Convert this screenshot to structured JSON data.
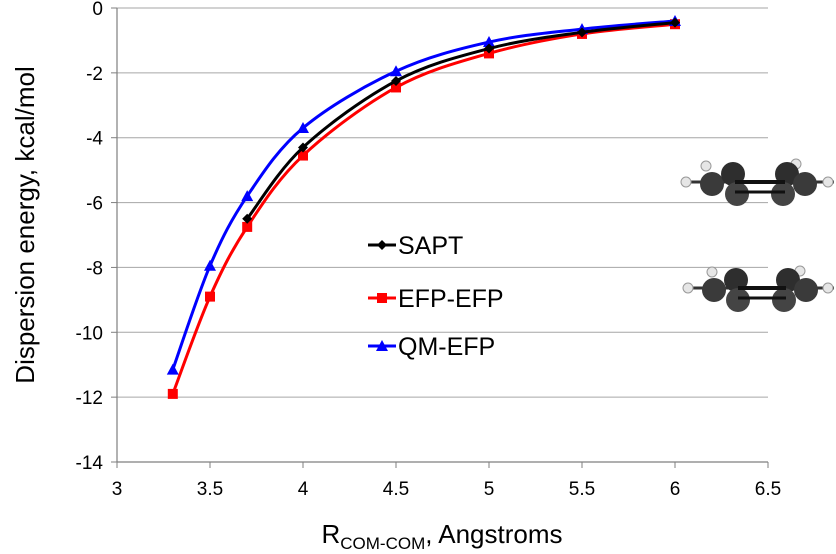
{
  "chart_data": {
    "type": "line",
    "title": "",
    "xlabel": {
      "main": "R",
      "subscript": "COM-COM",
      "suffix": ", Angstroms"
    },
    "ylabel": "Dispersion energy, kcal/mol",
    "xlim": [
      3,
      6.5
    ],
    "ylim": [
      -14,
      0
    ],
    "xticks": [
      "3",
      "3.5",
      "4",
      "4.5",
      "5",
      "5.5",
      "6",
      "6.5"
    ],
    "yticks": [
      "0",
      "-2",
      "-4",
      "-6",
      "-8",
      "-10",
      "-12",
      "-14"
    ],
    "grid": "horizontal",
    "legend_position": "center",
    "series": [
      {
        "name": "SAPT",
        "color": "#000000",
        "marker": "diamond",
        "x": [
          3.7,
          4.0,
          4.5,
          5.0,
          5.5,
          6.0
        ],
        "y": [
          -6.5,
          -4.3,
          -2.25,
          -1.25,
          -0.75,
          -0.45
        ]
      },
      {
        "name": "EFP-EFP",
        "color": "#ff0000",
        "marker": "square",
        "x": [
          3.3,
          3.5,
          3.7,
          4.0,
          4.5,
          5.0,
          5.5,
          6.0
        ],
        "y": [
          -11.9,
          -8.9,
          -6.75,
          -4.55,
          -2.45,
          -1.4,
          -0.8,
          -0.5
        ]
      },
      {
        "name": "QM-EFP",
        "color": "#0000ff",
        "marker": "triangle",
        "x": [
          3.3,
          3.5,
          3.7,
          4.0,
          4.5,
          5.0,
          5.5,
          6.0
        ],
        "y": [
          -11.15,
          -7.95,
          -5.8,
          -3.7,
          -1.95,
          -1.05,
          -0.65,
          -0.4
        ]
      }
    ]
  },
  "molecule_image": {
    "icon": "benzene-dimer-molecule-icon"
  }
}
